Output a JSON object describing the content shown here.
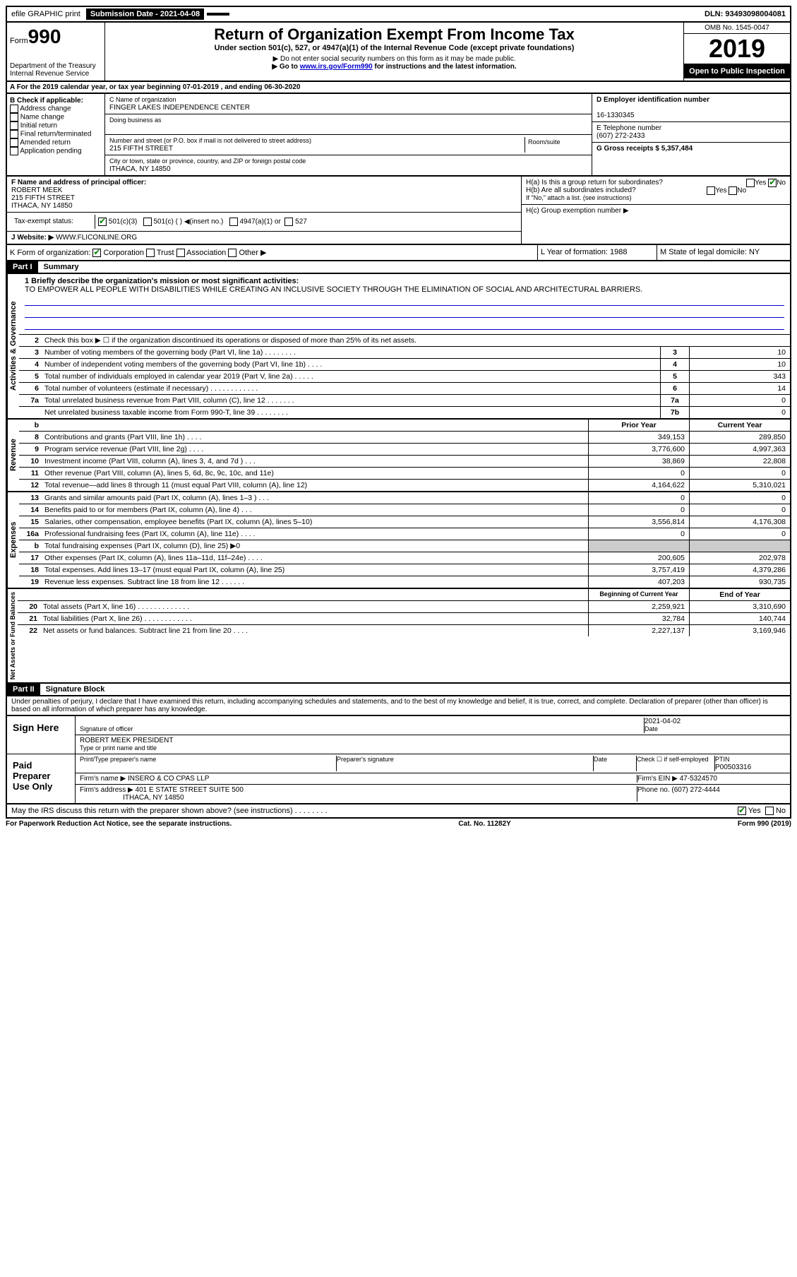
{
  "topbar": {
    "efile": "efile GRAPHIC print",
    "submission_label": "Submission Date - 2021-04-08",
    "dln": "DLN: 93493098004081"
  },
  "header": {
    "form_label": "Form",
    "form_number": "990",
    "dept": "Department of the Treasury\nInternal Revenue Service",
    "title": "Return of Organization Exempt From Income Tax",
    "subtitle": "Under section 501(c), 527, or 4947(a)(1) of the Internal Revenue Code (except private foundations)",
    "note1": "▶ Do not enter social security numbers on this form as it may be made public.",
    "note2_pre": "▶ Go to ",
    "note2_link": "www.irs.gov/Form990",
    "note2_post": " for instructions and the latest information.",
    "omb": "OMB No. 1545-0047",
    "year": "2019",
    "inspection": "Open to Public Inspection"
  },
  "section_a": "A For the 2019 calendar year, or tax year beginning 07-01-2019   , and ending 06-30-2020",
  "box_b": {
    "title": "B Check if applicable:",
    "items": [
      "Address change",
      "Name change",
      "Initial return",
      "Final return/terminated",
      "Amended return",
      "Application pending"
    ]
  },
  "box_c": {
    "name_label": "C Name of organization",
    "name": "FINGER LAKES INDEPENDENCE CENTER",
    "dba_label": "Doing business as",
    "addr_label": "Number and street (or P.O. box if mail is not delivered to street address)",
    "room_label": "Room/suite",
    "addr": "215 FIFTH STREET",
    "city_label": "City or town, state or province, country, and ZIP or foreign postal code",
    "city": "ITHACA, NY  14850"
  },
  "box_d": {
    "label": "D Employer identification number",
    "value": "16-1330345"
  },
  "box_e": {
    "label": "E Telephone number",
    "value": "(607) 272-2433"
  },
  "box_g": {
    "label": "G Gross receipts $ 5,357,484"
  },
  "box_f": {
    "label": "F  Name and address of principal officer:",
    "name": "ROBERT MEEK",
    "addr1": "215 FIFTH STREET",
    "addr2": "ITHACA, NY  14850"
  },
  "box_h": {
    "ha": "H(a)  Is this a group return for subordinates?",
    "hb": "H(b)  Are all subordinates included?",
    "hb_note": "If \"No,\" attach a list. (see instructions)",
    "hc": "H(c)  Group exemption number ▶",
    "yes": "Yes",
    "no": "No"
  },
  "tax_exempt": {
    "label": "Tax-exempt status:",
    "c3": "501(c)(3)",
    "c": "501(c) (   ) ◀(insert no.)",
    "a1": "4947(a)(1) or",
    "527": "527"
  },
  "website": {
    "label": "J   Website: ▶",
    "value": "WWW.FLICONLINE.ORG"
  },
  "box_k": {
    "label": "K Form of organization:",
    "corp": "Corporation",
    "trust": "Trust",
    "assoc": "Association",
    "other": "Other ▶"
  },
  "box_l": "L Year of formation: 1988",
  "box_m": "M State of legal domicile: NY",
  "part1": {
    "label": "Part I",
    "title": "Summary"
  },
  "mission": {
    "q": "1  Briefly describe the organization's mission or most significant activities:",
    "text": "TO EMPOWER ALL PEOPLE WITH DISABILITIES WHILE CREATING AN INCLUSIVE SOCIETY THROUGH THE ELIMINATION OF SOCIAL AND ARCHITECTURAL BARRIERS."
  },
  "gov_rows": [
    {
      "n": "2",
      "d": "Check this box ▶ ☐  if the organization discontinued its operations or disposed of more than 25% of its net assets."
    },
    {
      "n": "3",
      "d": "Number of voting members of the governing body (Part VI, line 1a)   .    .    .    .    .    .    .    .",
      "box": "3",
      "v": "10"
    },
    {
      "n": "4",
      "d": "Number of independent voting members of the governing body (Part VI, line 1b)   .    .    .    .",
      "box": "4",
      "v": "10"
    },
    {
      "n": "5",
      "d": "Total number of individuals employed in calendar year 2019 (Part V, line 2a)   .    .    .    .    .",
      "box": "5",
      "v": "343"
    },
    {
      "n": "6",
      "d": "Total number of volunteers (estimate if necessary)    .    .    .    .    .    .    .    .    .    .    .    .",
      "box": "6",
      "v": "14"
    },
    {
      "n": "7a",
      "d": "Total unrelated business revenue from Part VIII, column (C), line 12   .    .    .    .    .    .    .",
      "box": "7a",
      "v": "0"
    },
    {
      "n": "",
      "d": "Net unrelated business taxable income from Form 990-T, line 39   .    .    .    .    .    .    .    .",
      "box": "7b",
      "v": "0"
    }
  ],
  "col_headers": {
    "prior": "Prior Year",
    "current": "Current Year"
  },
  "rev_rows": [
    {
      "n": "8",
      "d": "Contributions and grants (Part VIII, line 1h)    .    .    .    .",
      "p": "349,153",
      "c": "289,850"
    },
    {
      "n": "9",
      "d": "Program service revenue (Part VIII, line 2g)    .    .    .    .",
      "p": "3,776,600",
      "c": "4,997,363"
    },
    {
      "n": "10",
      "d": "Investment income (Part VIII, column (A), lines 3, 4, and 7d )    .    .    .",
      "p": "38,869",
      "c": "22,808"
    },
    {
      "n": "11",
      "d": "Other revenue (Part VIII, column (A), lines 5, 6d, 8c, 9c, 10c, and 11e)",
      "p": "0",
      "c": "0"
    },
    {
      "n": "12",
      "d": "Total revenue—add lines 8 through 11 (must equal Part VIII, column (A), line 12)",
      "p": "4,164,622",
      "c": "5,310,021"
    }
  ],
  "exp_rows": [
    {
      "n": "13",
      "d": "Grants and similar amounts paid (Part IX, column (A), lines 1–3 )   .    .    .",
      "p": "0",
      "c": "0"
    },
    {
      "n": "14",
      "d": "Benefits paid to or for members (Part IX, column (A), line 4)   .    .    .",
      "p": "0",
      "c": "0"
    },
    {
      "n": "15",
      "d": "Salaries, other compensation, employee benefits (Part IX, column (A), lines 5–10)",
      "p": "3,556,814",
      "c": "4,176,308"
    },
    {
      "n": "16a",
      "d": "Professional fundraising fees (Part IX, column (A), line 11e)   .    .    .    .",
      "p": "0",
      "c": "0"
    },
    {
      "n": "b",
      "d": "Total fundraising expenses (Part IX, column (D), line 25) ▶0",
      "p": "",
      "c": "",
      "shaded": true
    },
    {
      "n": "17",
      "d": "Other expenses (Part IX, column (A), lines 11a–11d, 11f–24e)   .    .    .    .",
      "p": "200,605",
      "c": "202,978"
    },
    {
      "n": "18",
      "d": "Total expenses. Add lines 13–17 (must equal Part IX, column (A), line 25)",
      "p": "3,757,419",
      "c": "4,379,286"
    },
    {
      "n": "19",
      "d": "Revenue less expenses. Subtract line 18 from line 12   .    .    .    .    .    .",
      "p": "407,203",
      "c": "930,735"
    }
  ],
  "net_headers": {
    "begin": "Beginning of Current Year",
    "end": "End of Year"
  },
  "net_rows": [
    {
      "n": "20",
      "d": "Total assets (Part X, line 16)   .    .    .    .    .    .    .    .    .    .    .    .    .",
      "p": "2,259,921",
      "c": "3,310,690"
    },
    {
      "n": "21",
      "d": "Total liabilities (Part X, line 26)   .    .    .    .    .    .    .    .    .    .    .    .",
      "p": "32,784",
      "c": "140,744"
    },
    {
      "n": "22",
      "d": "Net assets or fund balances. Subtract line 21 from line 20   .    .    .    .",
      "p": "2,227,137",
      "c": "3,169,946"
    }
  ],
  "part2": {
    "label": "Part II",
    "title": "Signature Block"
  },
  "penalty": "Under penalties of perjury, I declare that I have examined this return, including accompanying schedules and statements, and to the best of my knowledge and belief, it is true, correct, and complete. Declaration of preparer (other than officer) is based on all information of which preparer has any knowledge.",
  "sign": {
    "here": "Sign Here",
    "sig_label": "Signature of officer",
    "date_label": "Date",
    "date": "2021-04-02",
    "name": "ROBERT MEEK PRESIDENT",
    "name_label": "Type or print name and title"
  },
  "preparer": {
    "label": "Paid Preparer Use Only",
    "print_label": "Print/Type preparer's name",
    "sig_label": "Preparer's signature",
    "date_label": "Date",
    "check_label": "Check ☐ if self-employed",
    "ptin_label": "PTIN",
    "ptin": "P00503316",
    "firm_name_label": "Firm's name     ▶",
    "firm_name": "INSERO & CO CPAS LLP",
    "firm_ein_label": "Firm's EIN ▶",
    "firm_ein": "47-5324570",
    "firm_addr_label": "Firm's address ▶",
    "firm_addr1": "401 E STATE STREET SUITE 500",
    "firm_addr2": "ITHACA, NY  14850",
    "phone_label": "Phone no.",
    "phone": "(607) 272-4444"
  },
  "discuss": {
    "q": "May the IRS discuss this return with the preparer shown above? (see instructions)   .    .    .    .    .    .    .    .",
    "yes": "Yes",
    "no": "No"
  },
  "footer": {
    "left": "For Paperwork Reduction Act Notice, see the separate instructions.",
    "mid": "Cat. No. 11282Y",
    "right": "Form 990 (2019)"
  },
  "vert_labels": {
    "gov": "Activities & Governance",
    "rev": "Revenue",
    "exp": "Expenses",
    "net": "Net Assets or Fund Balances"
  }
}
